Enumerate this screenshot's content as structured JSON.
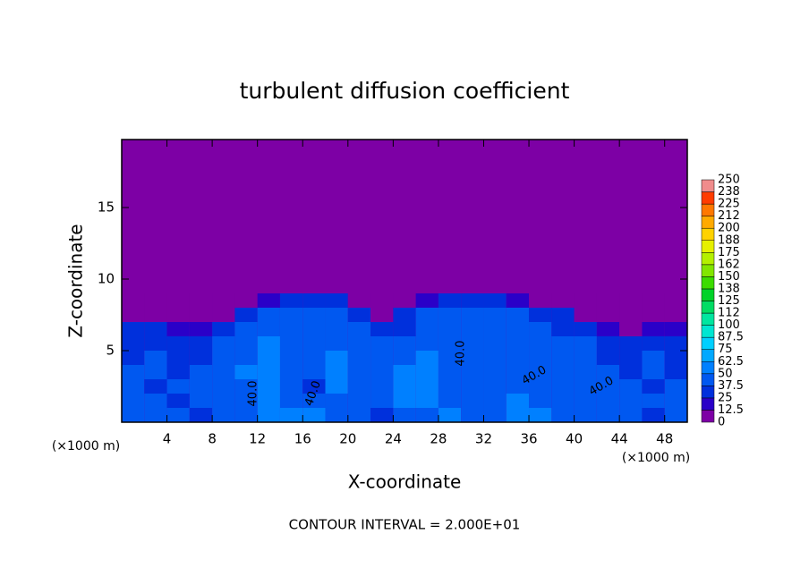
{
  "chart_data": {
    "type": "contour",
    "title": "turbulent diffusion coefficient",
    "xlabel": "X-coordinate",
    "ylabel": "Z-coordinate",
    "x_unit_left": "(×1000 m)",
    "x_unit_right": "(×1000 m)",
    "footnote": "CONTOUR INTERVAL = 2.000E+01",
    "xlim": [
      0,
      50
    ],
    "ylim": [
      0,
      19.75
    ],
    "xticks": [
      4,
      8,
      12,
      16,
      20,
      24,
      28,
      32,
      36,
      40,
      44,
      48
    ],
    "yticks": [
      5,
      10,
      15
    ],
    "background_color": "#7d00a5",
    "levels": [
      0,
      12.5,
      25,
      37.5,
      50,
      62.5,
      75,
      87.5,
      100,
      {
        "value": 112.5,
        "label": "112"
      },
      125,
      {
        "value": 137.5,
        "label": "138"
      },
      150,
      {
        "value": 162.5,
        "label": "162"
      },
      175,
      {
        "value": 187.5,
        "label": "188"
      },
      200,
      {
        "value": 212.5,
        "label": "212"
      },
      225,
      {
        "value": 237.5,
        "label": "238"
      },
      250
    ],
    "level_colors": [
      "#7d00a5",
      "#2a00c8",
      "#0030dc",
      "#0058f0",
      "#0080ff",
      "#00a8ff",
      "#00d0ff",
      "#00e6d2",
      "#00e6a0",
      "#00dc64",
      "#00d228",
      "#3cdc00",
      "#82e600",
      "#b4f000",
      "#e6f000",
      "#ffd200",
      "#ffaa00",
      "#ff7800",
      "#ff3c00",
      "#f08c8c"
    ],
    "field": {
      "x": [
        1,
        3,
        5,
        7,
        9,
        11,
        13,
        15,
        17,
        19,
        21,
        23,
        25,
        27,
        29,
        31,
        33,
        35,
        37,
        39,
        41,
        43,
        45,
        47,
        49
      ],
      "z": [
        0.5,
        1.5,
        2.5,
        3.5,
        4.5,
        5.5,
        6.5,
        7.5,
        8.5
      ],
      "values": [
        [
          40,
          45,
          38,
          35,
          42,
          45,
          50,
          60,
          55,
          45,
          40,
          35,
          38,
          45,
          50,
          45,
          40,
          55,
          50,
          45,
          40,
          38,
          42,
          35,
          38
        ],
        [
          42,
          38,
          35,
          40,
          45,
          40,
          55,
          45,
          40,
          38,
          45,
          42,
          50,
          55,
          45,
          42,
          45,
          50,
          45,
          40,
          42,
          45,
          48,
          38,
          40
        ],
        [
          40,
          35,
          38,
          42,
          40,
          45,
          60,
          45,
          35,
          50,
          45,
          40,
          55,
          60,
          40,
          38,
          42,
          45,
          40,
          38,
          45,
          42,
          40,
          35,
          38
        ],
        [
          38,
          40,
          35,
          38,
          42,
          50,
          55,
          42,
          40,
          55,
          45,
          38,
          50,
          55,
          38,
          40,
          45,
          42,
          38,
          40,
          45,
          38,
          35,
          40,
          35
        ],
        [
          35,
          38,
          32,
          35,
          40,
          45,
          50,
          45,
          42,
          50,
          40,
          38,
          45,
          50,
          40,
          42,
          40,
          45,
          42,
          38,
          40,
          35,
          32,
          38,
          30
        ],
        [
          30,
          35,
          30,
          32,
          38,
          42,
          55,
          48,
          40,
          45,
          42,
          40,
          38,
          45,
          42,
          40,
          42,
          40,
          38,
          40,
          38,
          30,
          28,
          30,
          25
        ],
        [
          25,
          30,
          20,
          15,
          30,
          40,
          45,
          40,
          38,
          42,
          40,
          30,
          35,
          45,
          40,
          42,
          40,
          38,
          40,
          35,
          30,
          15,
          10,
          15,
          20
        ],
        [
          0,
          0,
          0,
          0,
          0,
          30,
          40,
          42,
          40,
          38,
          35,
          10,
          25,
          40,
          38,
          40,
          38,
          40,
          35,
          25,
          0,
          0,
          0,
          0,
          0
        ],
        [
          0,
          0,
          0,
          0,
          0,
          0,
          20,
          30,
          35,
          30,
          10,
          0,
          0,
          20,
          30,
          35,
          30,
          20,
          10,
          0,
          0,
          0,
          0,
          0,
          0
        ]
      ]
    },
    "contour_labels": [
      "40.0",
      "40.0",
      "40.0",
      "40.0",
      "40.0"
    ]
  }
}
